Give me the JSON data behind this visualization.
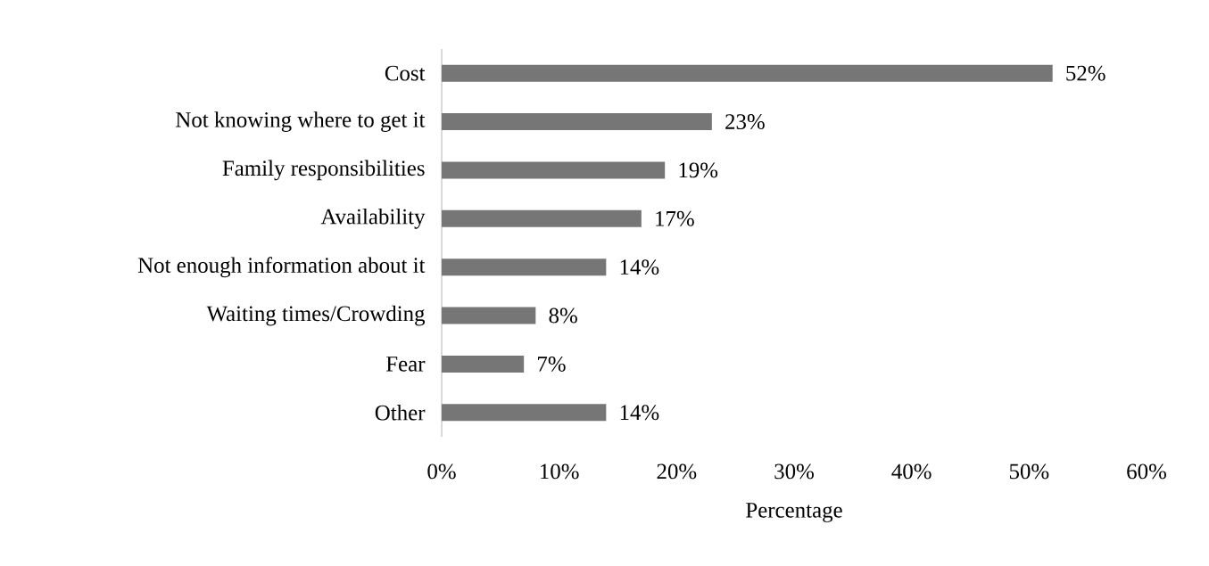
{
  "chart_data": {
    "type": "bar",
    "orientation": "horizontal",
    "xlabel": "Percentage",
    "categories": [
      "Cost",
      "Not knowing where to get it",
      "Family responsibilities",
      "Availability",
      "Not enough information about it",
      "Waiting times/Crowding",
      "Fear",
      "Other"
    ],
    "values": [
      52,
      23,
      19,
      17,
      14,
      8,
      7,
      14
    ],
    "value_labels": [
      "52%",
      "23%",
      "19%",
      "17%",
      "14%",
      "8%",
      "7%",
      "14%"
    ],
    "color": "#767676",
    "xlim": [
      0,
      60
    ],
    "xticks": [
      {
        "value": 0,
        "label": "0%"
      },
      {
        "value": 10,
        "label": "10%"
      },
      {
        "value": 20,
        "label": "20%"
      },
      {
        "value": 30,
        "label": "30%"
      },
      {
        "value": 40,
        "label": "40%"
      },
      {
        "value": 50,
        "label": "50%"
      },
      {
        "value": 60,
        "label": "60%"
      }
    ]
  }
}
